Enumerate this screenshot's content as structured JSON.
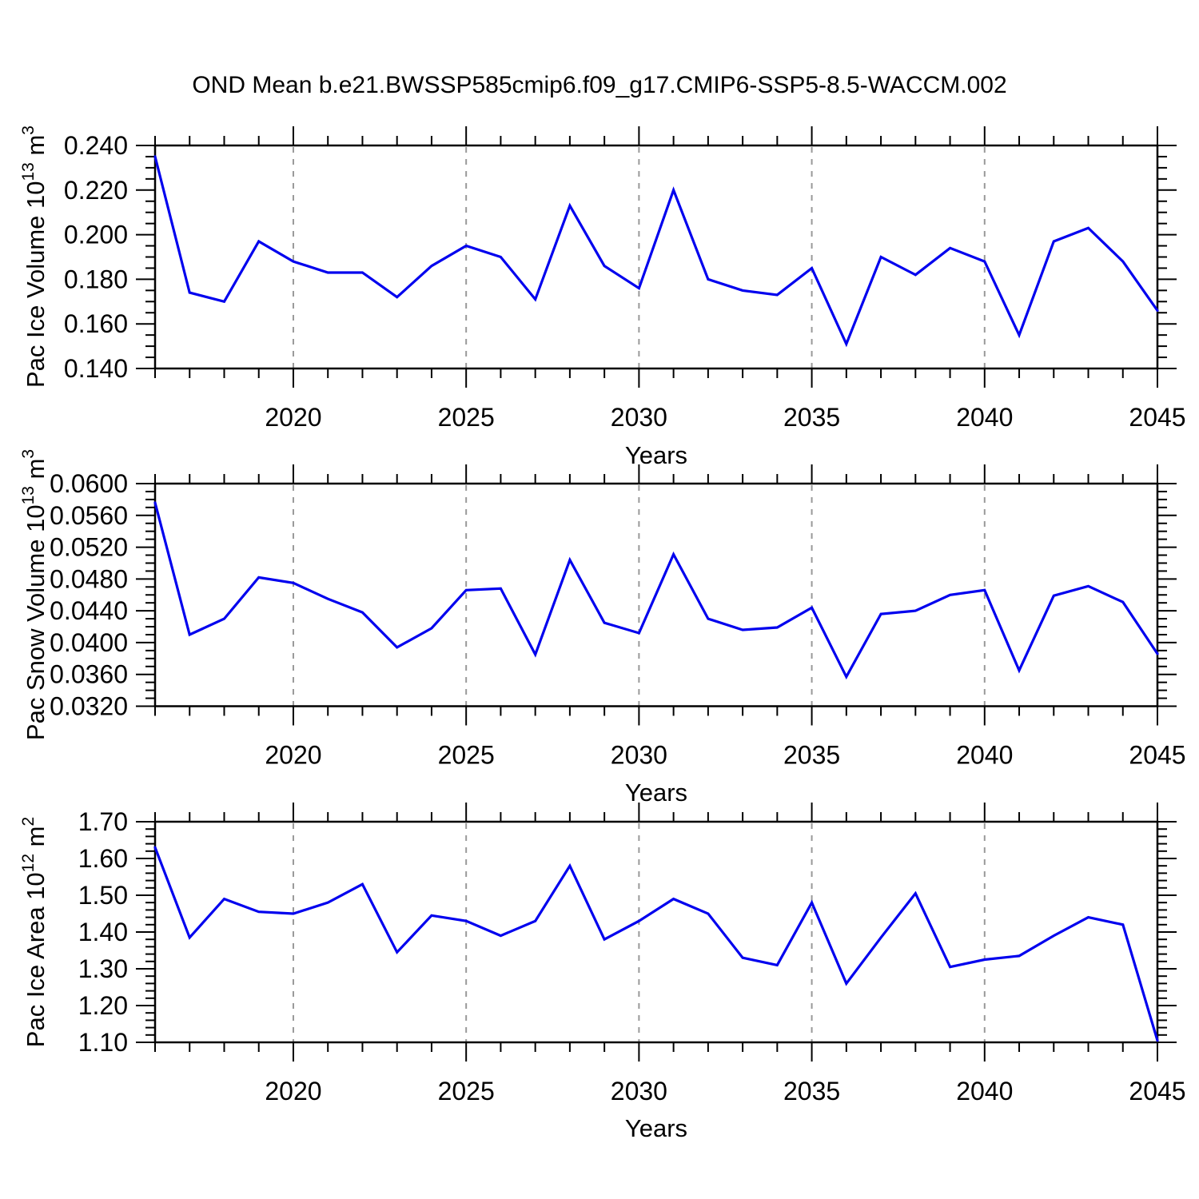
{
  "header": {
    "title": "OND Mean b.e21.BWSSP585cmip6.f09_g17.CMIP6-SSP5-8.5-WACCM.002"
  },
  "colors": {
    "line": "#0000ee",
    "grid": "#999999",
    "axis": "#000000",
    "text": "#000000",
    "background": "#ffffff"
  },
  "chart_data": [
    {
      "type": "line",
      "title": "OND Mean b.e21.BWSSP585cmip6.f09_g17.CMIP6-SSP5-8.5-WACCM.002",
      "ylabel": "Pac Ice Volume 10^13 m^3",
      "ylabel_parts": {
        "prefix": "Pac Ice Volume 10",
        "sup1": "13",
        "mid": " m",
        "sup2": "3"
      },
      "xlabel": "Years",
      "x": [
        2016,
        2017,
        2018,
        2019,
        2020,
        2021,
        2022,
        2023,
        2024,
        2025,
        2026,
        2027,
        2028,
        2029,
        2030,
        2031,
        2032,
        2033,
        2034,
        2035,
        2036,
        2037,
        2038,
        2039,
        2040,
        2041,
        2042,
        2043,
        2044,
        2045
      ],
      "values": [
        0.235,
        0.174,
        0.17,
        0.197,
        0.188,
        0.183,
        0.183,
        0.172,
        0.186,
        0.195,
        0.19,
        0.171,
        0.213,
        0.186,
        0.176,
        0.22,
        0.18,
        0.175,
        0.173,
        0.185,
        0.151,
        0.19,
        0.182,
        0.194,
        0.188,
        0.155,
        0.197,
        0.203,
        0.188,
        0.166
      ],
      "xlim": [
        2016,
        2045
      ],
      "ylim": [
        0.14,
        0.24
      ],
      "xticks": [
        2020,
        2025,
        2030,
        2035,
        2040,
        2045
      ],
      "xtick_labels": [
        "2020",
        "2025",
        "2030",
        "2035",
        "2040",
        "2045"
      ],
      "xminor_step": 1,
      "yticks": [
        0.14,
        0.16,
        0.18,
        0.2,
        0.22,
        0.24
      ],
      "ytick_labels": [
        "0.140",
        "0.160",
        "0.180",
        "0.200",
        "0.220",
        "0.240"
      ],
      "yminor_step": 0.005,
      "grid_x": [
        2020,
        2025,
        2030,
        2035,
        2040
      ],
      "grid": "vertical-dashed",
      "legend": "none"
    },
    {
      "type": "line",
      "title": "",
      "ylabel": "Pac Snow Volume 10^13 m^3",
      "ylabel_parts": {
        "prefix": "Pac Snow Volume 10",
        "sup1": "13",
        "mid": " m",
        "sup2": "3"
      },
      "xlabel": "Years",
      "x": [
        2016,
        2017,
        2018,
        2019,
        2020,
        2021,
        2022,
        2023,
        2024,
        2025,
        2026,
        2027,
        2028,
        2029,
        2030,
        2031,
        2032,
        2033,
        2034,
        2035,
        2036,
        2037,
        2038,
        2039,
        2040,
        2041,
        2042,
        2043,
        2044,
        2045
      ],
      "values": [
        0.0576,
        0.041,
        0.043,
        0.0482,
        0.0475,
        0.0455,
        0.0438,
        0.0394,
        0.0418,
        0.0466,
        0.0468,
        0.0385,
        0.0504,
        0.0425,
        0.0412,
        0.0511,
        0.043,
        0.0416,
        0.0419,
        0.0444,
        0.0357,
        0.0436,
        0.044,
        0.046,
        0.0466,
        0.0365,
        0.0459,
        0.0471,
        0.0451,
        0.0386
      ],
      "xlim": [
        2016,
        2045
      ],
      "ylim": [
        0.032,
        0.06
      ],
      "xticks": [
        2020,
        2025,
        2030,
        2035,
        2040,
        2045
      ],
      "xtick_labels": [
        "2020",
        "2025",
        "2030",
        "2035",
        "2040",
        "2045"
      ],
      "xminor_step": 1,
      "yticks": [
        0.032,
        0.036,
        0.04,
        0.044,
        0.048,
        0.052,
        0.056,
        0.06
      ],
      "ytick_labels": [
        "0.0320",
        "0.0360",
        "0.0400",
        "0.0440",
        "0.0480",
        "0.0520",
        "0.0560",
        "0.0600"
      ],
      "yminor_step": 0.001,
      "grid_x": [
        2020,
        2025,
        2030,
        2035,
        2040
      ],
      "grid": "vertical-dashed",
      "legend": "none"
    },
    {
      "type": "line",
      "title": "",
      "ylabel": "Pac Ice Area 10^12 m^2",
      "ylabel_parts": {
        "prefix": "Pac Ice Area 10",
        "sup1": "12",
        "mid": " m",
        "sup2": "2"
      },
      "xlabel": "Years",
      "x": [
        2016,
        2017,
        2018,
        2019,
        2020,
        2021,
        2022,
        2023,
        2024,
        2025,
        2026,
        2027,
        2028,
        2029,
        2030,
        2031,
        2032,
        2033,
        2034,
        2035,
        2036,
        2037,
        2038,
        2039,
        2040,
        2041,
        2042,
        2043,
        2044,
        2045
      ],
      "values": [
        1.63,
        1.385,
        1.49,
        1.455,
        1.45,
        1.48,
        1.53,
        1.345,
        1.445,
        1.43,
        1.39,
        1.43,
        1.58,
        1.38,
        1.43,
        1.49,
        1.45,
        1.33,
        1.31,
        1.48,
        1.26,
        1.385,
        1.505,
        1.305,
        1.325,
        1.335,
        1.39,
        1.44,
        1.42,
        1.105
      ],
      "xlim": [
        2016,
        2045
      ],
      "ylim": [
        1.1,
        1.7
      ],
      "xticks": [
        2020,
        2025,
        2030,
        2035,
        2040,
        2045
      ],
      "xtick_labels": [
        "2020",
        "2025",
        "2030",
        "2035",
        "2040",
        "2045"
      ],
      "xminor_step": 1,
      "yticks": [
        1.1,
        1.2,
        1.3,
        1.4,
        1.5,
        1.6,
        1.7
      ],
      "ytick_labels": [
        "1.10",
        "1.20",
        "1.30",
        "1.40",
        "1.50",
        "1.60",
        "1.70"
      ],
      "yminor_step": 0.02,
      "grid_x": [
        2020,
        2025,
        2030,
        2035,
        2040
      ],
      "grid": "vertical-dashed",
      "legend": "none"
    }
  ]
}
